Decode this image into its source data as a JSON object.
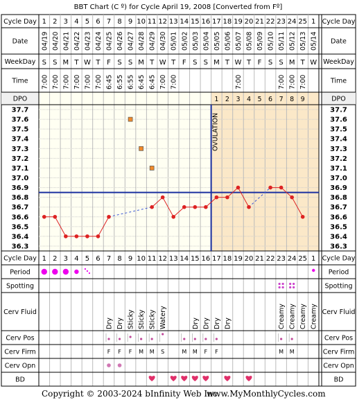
{
  "title": "BBT Chart (C º) for Cycle April 19, 2008  [Converted from Fº]",
  "footer": {
    "copyright": "Copyright © 2003-2024 bInfinity Web Inc.",
    "site": "www.MyMonthlyCycles.com"
  },
  "row_labels": {
    "cycle_day": "Cycle Day",
    "date": "Date",
    "weekday": "WeekDay",
    "time": "Time",
    "dpo": "DPO",
    "period": "Period",
    "spotting": "Spotting",
    "cerv_fluid": "Cerv Fluid",
    "cerv_pos": "Cerv Pos",
    "cerv_firm": "Cerv Firm",
    "cerv_opn": "Cerv Opn",
    "bd": "BD"
  },
  "ovulation_label": "OVULATION",
  "colors": {
    "grid_bg": "#fffff2",
    "luteal_bg": "#fbe8c8",
    "header_bg": "#f0f0f0",
    "temp_line": "#dd2222",
    "coverline": "#1a2fa0",
    "period": "#ee00ee",
    "spotting": "#cc44cc",
    "heart": "#e0306a",
    "firm": "#c04a9a",
    "missed_marker": "#f08a2a"
  },
  "columns": {
    "cycle_day": [
      "1",
      "2",
      "3",
      "4",
      "5",
      "6",
      "7",
      "8",
      "9",
      "10",
      "11",
      "12",
      "13",
      "14",
      "15",
      "16",
      "17",
      "18",
      "19",
      "20",
      "21",
      "22",
      "23",
      "24",
      "25",
      "1"
    ],
    "date": [
      "04/19",
      "04/20",
      "04/21",
      "04/22",
      "04/23",
      "04/24",
      "04/25",
      "04/26",
      "04/27",
      "04/28",
      "04/29",
      "04/30",
      "05/01",
      "05/02",
      "05/03",
      "05/04",
      "05/05",
      "05/06",
      "05/07",
      "05/08",
      "05/09",
      "05/10",
      "05/11",
      "05/12",
      "05/13",
      "05/14"
    ],
    "weekday": [
      "S",
      "S",
      "M",
      "T",
      "W",
      "T",
      "F",
      "S",
      "S",
      "M",
      "T",
      "W",
      "T",
      "F",
      "S",
      "S",
      "M",
      "T",
      "W",
      "T",
      "F",
      "S",
      "S",
      "M",
      "T",
      "W"
    ],
    "time": [
      "7:00",
      "7:00",
      "7:00",
      "7:00",
      "7:00",
      "7:00",
      "6:45",
      "6:55",
      "6:55",
      "6:45",
      "6:45",
      "7:00",
      "7:00",
      "",
      "",
      "",
      "",
      "",
      "7:00",
      "",
      "",
      "",
      "7:00",
      "7:00",
      "7:00",
      ""
    ],
    "dpo": [
      "",
      "",
      "",
      "",
      "",
      "",
      "",
      "",
      "",
      "",
      "",
      "",
      "",
      "",
      "",
      "",
      "1",
      "2",
      "3",
      "4",
      "5",
      "6",
      "7",
      "8",
      "9",
      ""
    ],
    "period": [
      "heavy",
      "heavy",
      "heavy",
      "medium",
      "spotty",
      "",
      "",
      "",
      "",
      "",
      "",
      "",
      "",
      "",
      "",
      "",
      "",
      "",
      "",
      "",
      "",
      "",
      "",
      "",
      "",
      "dot"
    ],
    "spotting": [
      "",
      "",
      "",
      "",
      "",
      "",
      "",
      "",
      "",
      "",
      "",
      "",
      "",
      "",
      "",
      "",
      "",
      "",
      "",
      "",
      "",
      "",
      "yes",
      "yes",
      "",
      ""
    ],
    "cerv_fluid": [
      "",
      "",
      "",
      "",
      "",
      "",
      "Dry",
      "Dry",
      "Sticky",
      "Sticky",
      "Sticky",
      "Watery",
      "",
      "",
      "Dry",
      "Dry",
      "Dry",
      "Dry",
      "",
      "",
      "",
      "",
      "Creamy",
      "Creamy",
      "Creamy",
      "Creamy"
    ],
    "cerv_pos": [
      "",
      "",
      "",
      "",
      "",
      "",
      "low",
      "low",
      "med",
      "low",
      "low",
      "high",
      "",
      "low",
      "low",
      "low",
      "low",
      "",
      "",
      "",
      "",
      "",
      "low",
      "low",
      "",
      ""
    ],
    "cerv_firm": [
      "",
      "",
      "",
      "",
      "",
      "",
      "F",
      "F",
      "F",
      "M",
      "M",
      "S",
      "",
      "M",
      "M",
      "F",
      "F",
      "",
      "",
      "",
      "",
      "",
      "M",
      "M",
      "",
      ""
    ],
    "cerv_opn": [
      "",
      "",
      "",
      "",
      "",
      "",
      "closed",
      "closed",
      "",
      "",
      "",
      "",
      "",
      "",
      "",
      "",
      "",
      "",
      "",
      "",
      "",
      "",
      "",
      "",
      "",
      ""
    ],
    "bd": [
      "",
      "",
      "",
      "",
      "",
      "",
      "",
      "",
      "",
      "",
      "yes",
      "",
      "yes",
      "yes",
      "yes",
      "yes",
      "",
      "yes",
      "",
      "yes",
      "",
      "",
      "",
      "",
      "",
      ""
    ]
  },
  "y_axis": {
    "ticks": [
      "37.7",
      "37.6",
      "37.5",
      "37.4",
      "37.3",
      "37.2",
      "37.1",
      "37.0",
      "36.9",
      "36.8",
      "36.7",
      "36.6",
      "36.5",
      "36.4",
      "36.3"
    ]
  },
  "chart_data": {
    "type": "line",
    "title": "BBT Chart (C º) for Cycle April 19, 2008  [Converted from Fº]",
    "xlabel": "Cycle Day",
    "ylabel": "",
    "ylim": [
      36.3,
      37.7
    ],
    "x": [
      1,
      2,
      3,
      4,
      5,
      6,
      7,
      8,
      9,
      10,
      11,
      12,
      13,
      14,
      15,
      16,
      17,
      18,
      19,
      20,
      21,
      22,
      23,
      24,
      25,
      26
    ],
    "series": [
      {
        "values": [
          36.6,
          36.6,
          36.4,
          36.4,
          36.4,
          36.4,
          36.6,
          null,
          null,
          null,
          36.7,
          36.8,
          36.6,
          36.7,
          36.7,
          36.7,
          36.8,
          36.8,
          36.9,
          36.7,
          null,
          36.9,
          36.9,
          36.8,
          36.6,
          null
        ]
      },
      {
        "values": [
          null,
          null,
          null,
          null,
          null,
          null,
          null,
          null,
          37.6,
          37.3,
          37.1,
          null,
          null,
          null,
          null,
          null,
          null,
          null,
          null,
          null,
          null,
          null,
          null,
          null,
          null,
          null
        ]
      }
    ],
    "dashed_gaps": [
      [
        7,
        11
      ],
      [
        20,
        22
      ]
    ],
    "coverline": 36.85,
    "ovulation_day": 16,
    "grid": true
  }
}
